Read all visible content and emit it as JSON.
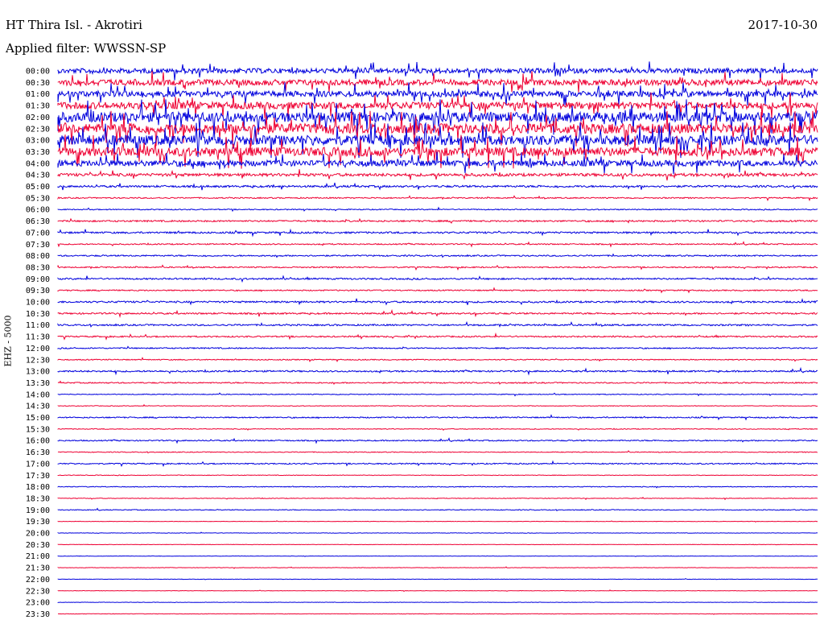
{
  "header": {
    "title": "HT Thira Isl. - Akrotiri",
    "date": "2017-10-30",
    "filter": "Applied filter: WWSSN-SP"
  },
  "axis": {
    "ylabel": "EHZ - 5000"
  },
  "colors": {
    "even": "#0000dd",
    "odd": "#ee0033",
    "background": "#ffffff"
  },
  "chart_data": {
    "type": "line",
    "title": "HT Thira Isl. - Akrotiri",
    "row_labels": [
      "00:00",
      "00:30",
      "01:00",
      "01:30",
      "02:00",
      "02:30",
      "03:00",
      "03:30",
      "04:00",
      "04:30",
      "05:00",
      "05:30",
      "06:00",
      "06:30",
      "07:00",
      "07:30",
      "08:00",
      "08:30",
      "09:00",
      "09:30",
      "10:00",
      "10:30",
      "11:00",
      "11:30",
      "12:00",
      "12:30",
      "13:00",
      "13:30",
      "14:00",
      "14:30",
      "15:00",
      "15:30",
      "16:00",
      "16:30",
      "17:00",
      "17:30",
      "18:00",
      "18:30",
      "19:00",
      "19:30",
      "20:00",
      "20:30",
      "21:00",
      "21:30",
      "22:00",
      "22:30",
      "23:00",
      "23:30"
    ],
    "ylabel": "EHZ - 5000",
    "row_activity": [
      2.5,
      3,
      3,
      3.5,
      5,
      5,
      5,
      4.5,
      3,
      1.5,
      1,
      0.6,
      0.5,
      0.8,
      0.9,
      0.6,
      0.7,
      0.6,
      0.8,
      0.6,
      0.9,
      0.8,
      0.8,
      0.7,
      0.6,
      0.5,
      0.8,
      0.6,
      0.4,
      0.3,
      0.6,
      0.4,
      0.6,
      0.4,
      0.6,
      0.3,
      0.4,
      0.3,
      0.4,
      0.2,
      0.2,
      0.2,
      0.2,
      0.2,
      0.2,
      0.2,
      0.2,
      0.2
    ]
  }
}
